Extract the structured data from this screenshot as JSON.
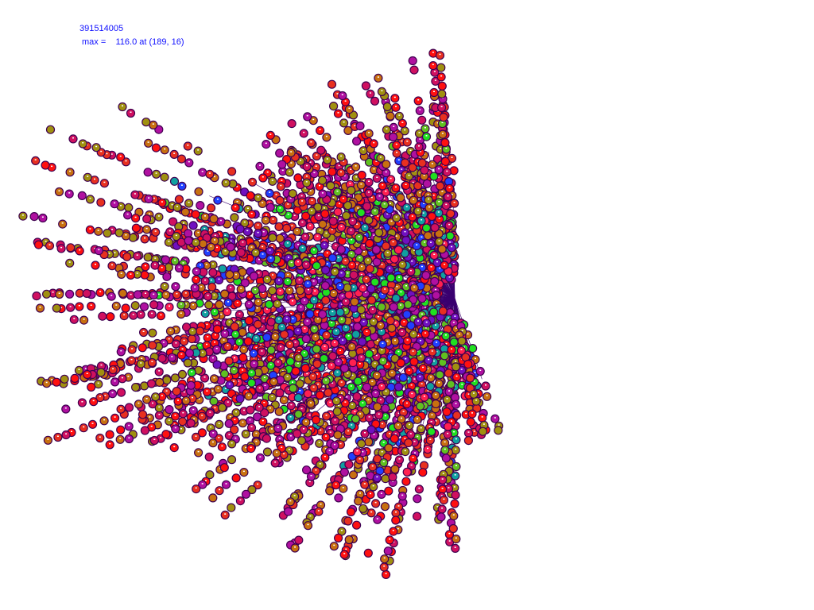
{
  "header": {
    "id_text": "391514005",
    "max_label": "max =",
    "max_value": "116.0 at (189, 16)"
  },
  "display": {
    "marker_palette": [
      "#ff1010",
      "#e83020",
      "#c87010",
      "#a09010",
      "#d01060",
      "#b010a0",
      "#7010c0",
      "#2040ff",
      "#20e020",
      "#60c020",
      "#10a0a0",
      "#ff2050"
    ],
    "marker_outline": "#400050",
    "ray_color": "#3a0070",
    "text_color": "#1010ff"
  }
}
